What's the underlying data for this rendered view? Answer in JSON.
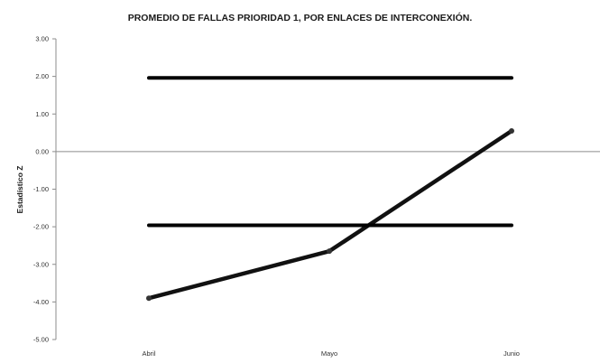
{
  "chart_data": {
    "type": "line",
    "title": "PROMEDIO DE FALLAS PRIORIDAD 1, POR ENLACES DE INTERCONEXIÓN.",
    "xlabel": "",
    "ylabel": "Estadístico Z",
    "categories": [
      "Abril",
      "Mayo",
      "Junio"
    ],
    "ylim": [
      -5,
      3
    ],
    "yticks": [
      "3.00",
      "2.00",
      "1.00",
      "0.00",
      "-1.00",
      "-2.00",
      "-3.00",
      "-4.00",
      "-5.00"
    ],
    "grid": false,
    "legend": "none",
    "series": [
      {
        "values": [
          -3.9,
          -2.65,
          0.55
        ],
        "color": "#111111"
      },
      {
        "values": [
          1.96,
          1.96,
          1.96
        ],
        "color": "#000000"
      },
      {
        "values": [
          -1.96,
          -1.96,
          -1.96
        ],
        "color": "#000000"
      }
    ]
  }
}
